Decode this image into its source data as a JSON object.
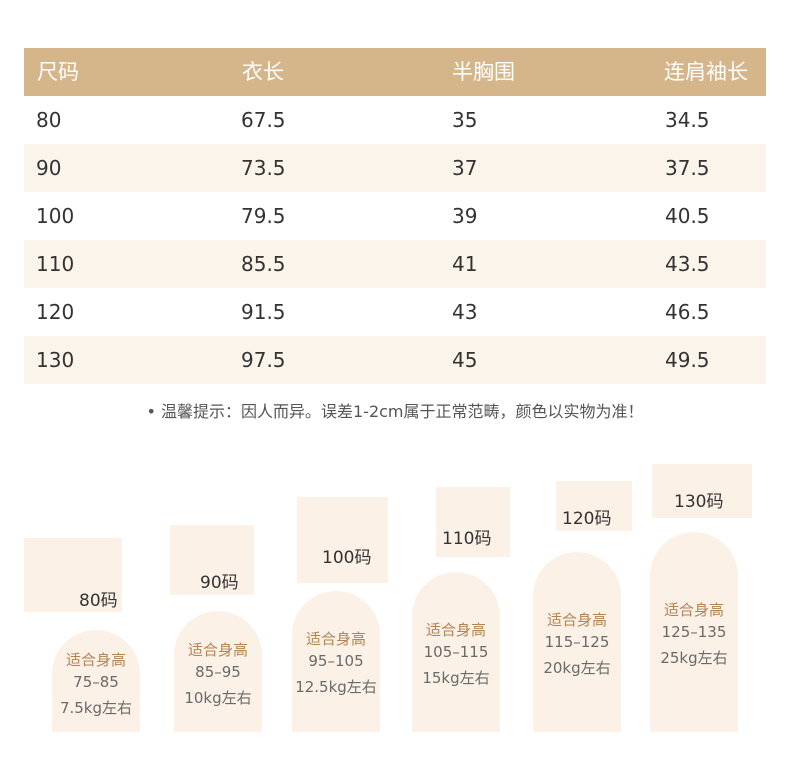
{
  "table": {
    "headers": [
      "尺码",
      "衣长",
      "半胸围",
      "连肩袖长"
    ],
    "rows": [
      [
        "80",
        "67.5",
        "35",
        "34.5"
      ],
      [
        "90",
        "73.5",
        "37",
        "37.5"
      ],
      [
        "100",
        "79.5",
        "39",
        "40.5"
      ],
      [
        "110",
        "85.5",
        "41",
        "43.5"
      ],
      [
        "120",
        "91.5",
        "43",
        "46.5"
      ],
      [
        "130",
        "97.5",
        "45",
        "49.5"
      ]
    ]
  },
  "note": "• 温馨提示：因人而异。误差1-2cm属于正常范畴，颜色以实物为准！",
  "sizes": [
    {
      "label": "80码",
      "suit": "适合身高",
      "height": "75–85",
      "weight": "7.5kg左右"
    },
    {
      "label": "90码",
      "suit": "适合身高",
      "height": "85–95",
      "weight": "10kg左右"
    },
    {
      "label": "100码",
      "suit": "适合身高",
      "height": "95–105",
      "weight": "12.5kg左右"
    },
    {
      "label": "110码",
      "suit": "适合身高",
      "height": "105–115",
      "weight": "15kg左右"
    },
    {
      "label": "120码",
      "suit": "适合身高",
      "height": "115–125",
      "weight": "20kg左右"
    },
    {
      "label": "130码",
      "suit": "适合身高",
      "height": "125–135",
      "weight": "25kg左右"
    }
  ],
  "colors": {
    "header_bg": "#d5b58a",
    "row_alt_bg": "#fbf4ea",
    "bar_bg": "#fbf1e6",
    "accent_text": "#b38352"
  }
}
